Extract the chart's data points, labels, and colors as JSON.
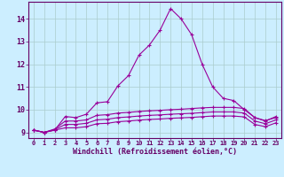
{
  "xlabel": "Windchill (Refroidissement éolien,°C)",
  "background_color": "#cceeff",
  "grid_color": "#aacccc",
  "line_color": "#990099",
  "x": [
    0,
    1,
    2,
    3,
    4,
    5,
    6,
    7,
    8,
    9,
    10,
    11,
    12,
    13,
    14,
    15,
    16,
    17,
    18,
    19,
    20,
    21,
    22,
    23
  ],
  "line1": [
    9.1,
    9.0,
    9.1,
    9.7,
    9.65,
    9.8,
    10.3,
    10.35,
    11.05,
    11.5,
    12.4,
    12.85,
    13.5,
    14.45,
    14.0,
    13.3,
    12.0,
    11.0,
    10.5,
    10.4,
    10.0,
    9.65,
    9.5,
    9.7
  ],
  "line2": [
    9.1,
    9.0,
    9.15,
    9.5,
    9.5,
    9.55,
    9.75,
    9.78,
    9.85,
    9.88,
    9.92,
    9.95,
    9.97,
    10.0,
    10.02,
    10.05,
    10.08,
    10.1,
    10.1,
    10.1,
    10.05,
    9.65,
    9.52,
    9.65
  ],
  "line3": [
    9.1,
    9.0,
    9.12,
    9.35,
    9.35,
    9.4,
    9.55,
    9.58,
    9.65,
    9.68,
    9.72,
    9.75,
    9.77,
    9.8,
    9.82,
    9.84,
    9.87,
    9.9,
    9.9,
    9.9,
    9.85,
    9.5,
    9.38,
    9.55
  ],
  "line4": [
    9.1,
    9.0,
    9.1,
    9.2,
    9.2,
    9.25,
    9.38,
    9.4,
    9.47,
    9.5,
    9.54,
    9.57,
    9.59,
    9.62,
    9.64,
    9.66,
    9.69,
    9.72,
    9.72,
    9.72,
    9.68,
    9.35,
    9.25,
    9.42
  ],
  "ylim": [
    8.75,
    14.75
  ],
  "yticks": [
    9,
    10,
    11,
    12,
    13,
    14
  ],
  "xticks": [
    0,
    1,
    2,
    3,
    4,
    5,
    6,
    7,
    8,
    9,
    10,
    11,
    12,
    13,
    14,
    15,
    16,
    17,
    18,
    19,
    20,
    21,
    22,
    23
  ]
}
